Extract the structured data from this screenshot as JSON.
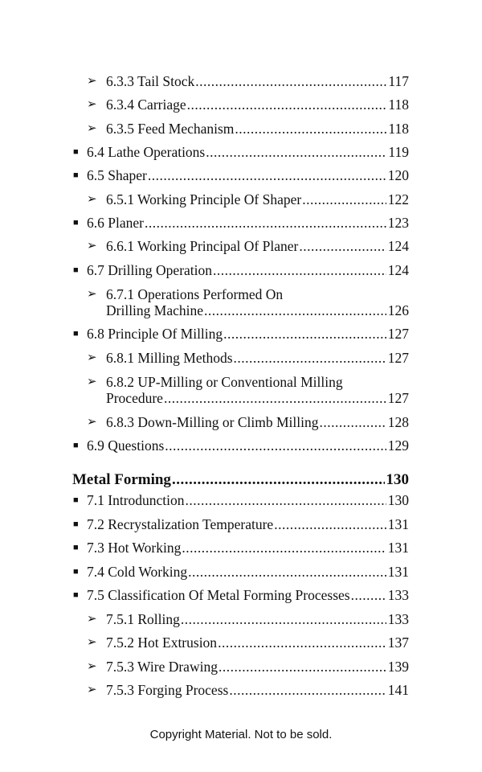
{
  "toc": [
    {
      "level": 2,
      "title": "6.3.3 Tail Stock",
      "page": "117"
    },
    {
      "level": 2,
      "title": "6.3.4 Carriage",
      "page": "118"
    },
    {
      "level": 2,
      "title": "6.3.5 Feed Mechanism",
      "page": "118"
    },
    {
      "level": 1,
      "title": "6.4 Lathe Operations",
      "page": "119"
    },
    {
      "level": 1,
      "title": "6.5 Shaper",
      "page": "120"
    },
    {
      "level": 2,
      "title": "6.5.1 Working Principle Of Shaper",
      "page": "122"
    },
    {
      "level": 1,
      "title": "6.6 Planer",
      "page": "123"
    },
    {
      "level": 2,
      "title": "6.6.1 Working Principal Of Planer",
      "page": "124"
    },
    {
      "level": 1,
      "title": "6.7 Drilling Operation",
      "page": "124"
    },
    {
      "level": 2,
      "title": "6.7.1 Operations Performed On",
      "title2": "Drilling Machine",
      "page": "126"
    },
    {
      "level": 1,
      "title": "6.8 Principle Of Milling",
      "page": "127"
    },
    {
      "level": 2,
      "title": "6.8.1 Milling Methods",
      "page": "127"
    },
    {
      "level": 2,
      "title": "6.8.2 UP-Milling or Conventional Milling",
      "title2": "Procedure",
      "page": "127"
    },
    {
      "level": 2,
      "title": "6.8.3 Down-Milling or Climb Milling",
      "page": "128"
    },
    {
      "level": 1,
      "title": "6.9 Questions",
      "page": "129"
    },
    {
      "level": 0,
      "title": "Metal Forming",
      "page": "130"
    },
    {
      "level": 1,
      "title": "7.1 Introdunction",
      "page": "130"
    },
    {
      "level": 1,
      "title": "7.2 Recrystalization Temperature",
      "page": "131"
    },
    {
      "level": 1,
      "title": "7.3 Hot Working",
      "page": "131"
    },
    {
      "level": 1,
      "title": "7.4 Cold Working",
      "page": "131"
    },
    {
      "level": 1,
      "title": "7.5 Classification Of Metal Forming Processes",
      "page": "133"
    },
    {
      "level": 2,
      "title": "7.5.1 Rolling",
      "page": "133"
    },
    {
      "level": 2,
      "title": "7.5.2 Hot Extrusion",
      "page": "137"
    },
    {
      "level": 2,
      "title": "7.5.3 Wire Drawing",
      "page": "139"
    },
    {
      "level": 2,
      "title": "7.5.3 Forging Process",
      "page": "141"
    }
  ],
  "bullets": {
    "level1": "■",
    "level2": "➢"
  },
  "footer": {
    "copyright": "Copyright Material. Not to be sold."
  }
}
